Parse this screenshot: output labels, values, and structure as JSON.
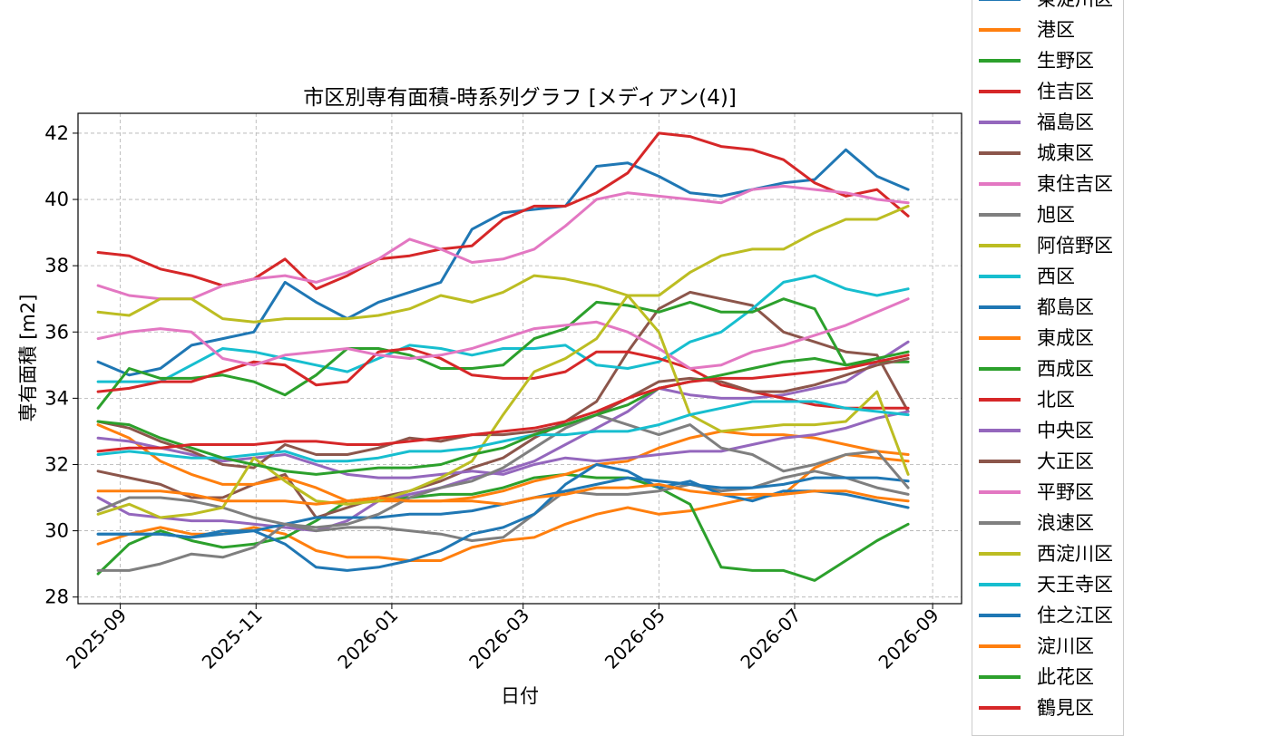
{
  "chart_data": {
    "type": "line",
    "title": "市区別専有面積-時系列グラフ [メディアン(4)]",
    "xlabel": "日付",
    "ylabel": "専有面積 [m2]",
    "ylim": [
      27.8,
      42.6
    ],
    "xlim": [
      "2025-08-13",
      "2026-09-14"
    ],
    "y_ticks": [
      28,
      30,
      32,
      34,
      36,
      38,
      40,
      42
    ],
    "x_ticks": [
      "2025-09-01",
      "2025-11-01",
      "2026-01-01",
      "2026-03-01",
      "2026-05-01",
      "2026-07-01",
      "2026-09-01"
    ],
    "x_tick_labels": [
      "2025-09",
      "2025-11",
      "2026-01",
      "2026-03",
      "2026-05",
      "2026-07",
      "2026-09"
    ],
    "grid": true,
    "legend_position": "right, outside plot",
    "x": [
      "2025-08-22",
      "2025-09-05",
      "2025-09-19",
      "2025-10-03",
      "2025-10-17",
      "2025-10-31",
      "2025-11-14",
      "2025-11-28",
      "2025-12-12",
      "2025-12-26",
      "2026-01-09",
      "2026-01-23",
      "2026-02-06",
      "2026-02-20",
      "2026-03-06",
      "2026-03-20",
      "2026-04-03",
      "2026-04-17",
      "2026-05-01",
      "2026-05-15",
      "2026-05-29",
      "2026-06-12",
      "2026-06-26",
      "2026-07-10",
      "2026-07-24",
      "2026-08-07",
      "2026-08-21"
    ],
    "series": [
      {
        "name": "東淀川区",
        "color": "#1f77b4",
        "values": [
          35.1,
          34.7,
          34.9,
          35.6,
          35.8,
          36.0,
          37.5,
          36.9,
          36.4,
          36.9,
          37.2,
          37.5,
          39.1,
          39.6,
          39.7,
          39.8,
          41.0,
          41.1,
          40.7,
          40.2,
          40.1,
          40.3,
          40.5,
          40.6,
          41.5,
          40.7,
          40.3
        ]
      },
      {
        "name": "港区",
        "color": "#ff7f0e",
        "values": [
          29.6,
          29.9,
          30.1,
          29.9,
          29.9,
          30.1,
          29.9,
          29.4,
          29.2,
          29.2,
          29.1,
          29.1,
          29.5,
          29.7,
          29.8,
          30.2,
          30.5,
          30.7,
          30.5,
          30.6,
          30.8,
          31.0,
          31.1,
          31.9,
          32.3,
          32.2,
          32.1
        ]
      },
      {
        "name": "生野区",
        "color": "#2ca02c",
        "values": [
          28.7,
          29.6,
          30.0,
          29.7,
          29.5,
          29.6,
          29.8,
          30.3,
          30.9,
          31.0,
          31.0,
          31.1,
          31.1,
          31.3,
          31.6,
          31.7,
          31.6,
          31.6,
          31.3,
          30.8,
          28.9,
          28.8,
          28.8,
          28.5,
          29.1,
          29.7,
          30.2
        ]
      },
      {
        "name": "住吉区",
        "color": "#d62728",
        "values": [
          38.4,
          38.3,
          37.9,
          37.7,
          37.4,
          37.6,
          38.2,
          37.3,
          37.7,
          38.2,
          38.3,
          38.5,
          38.6,
          39.4,
          39.8,
          39.8,
          40.2,
          40.8,
          42.0,
          41.9,
          41.6,
          41.5,
          41.2,
          40.5,
          40.1,
          40.3,
          39.5
        ]
      },
      {
        "name": "福島区",
        "color": "#9467bd",
        "values": [
          31.0,
          30.5,
          30.4,
          30.3,
          30.3,
          30.2,
          30.1,
          30.0,
          30.3,
          30.9,
          31.1,
          31.3,
          31.6,
          31.8,
          32.1,
          32.6,
          33.1,
          33.6,
          34.3,
          34.1,
          34.0,
          34.0,
          34.1,
          34.3,
          34.5,
          35.1,
          35.7
        ]
      },
      {
        "name": "城東区",
        "color": "#8c564b",
        "values": [
          31.8,
          31.6,
          31.4,
          31.0,
          31.0,
          31.4,
          31.7,
          30.4,
          30.7,
          31.0,
          31.2,
          31.5,
          31.9,
          32.2,
          32.8,
          33.3,
          33.9,
          35.4,
          36.7,
          37.2,
          37.0,
          36.8,
          36.0,
          35.7,
          35.4,
          35.3,
          33.6
        ]
      },
      {
        "name": "東住吉区",
        "color": "#e377c2",
        "values": [
          37.4,
          37.1,
          37.0,
          37.0,
          37.4,
          37.6,
          37.7,
          37.5,
          37.8,
          38.2,
          38.8,
          38.5,
          38.1,
          38.2,
          38.5,
          39.2,
          40.0,
          40.2,
          40.1,
          40.0,
          39.9,
          40.3,
          40.4,
          40.3,
          40.2,
          40.0,
          39.9
        ]
      },
      {
        "name": "旭区",
        "color": "#7f7f7f",
        "values": [
          28.8,
          28.8,
          29.0,
          29.3,
          29.2,
          29.5,
          30.2,
          30.0,
          30.1,
          30.1,
          30.0,
          29.9,
          29.7,
          29.8,
          30.5,
          31.2,
          31.1,
          31.1,
          31.2,
          31.4,
          31.2,
          31.3,
          31.6,
          31.8,
          31.6,
          31.3,
          31.1
        ]
      },
      {
        "name": "阿倍野区",
        "color": "#bcbd22",
        "values": [
          36.6,
          36.5,
          37.0,
          37.0,
          36.4,
          36.3,
          36.4,
          36.4,
          36.4,
          36.5,
          36.7,
          37.1,
          36.9,
          37.2,
          37.7,
          37.6,
          37.4,
          37.1,
          37.1,
          37.8,
          38.3,
          38.5,
          38.5,
          39.0,
          39.4,
          39.4,
          39.8
        ]
      },
      {
        "name": "西区",
        "color": "#17becf",
        "values": [
          34.5,
          34.5,
          34.5,
          35.0,
          35.5,
          35.4,
          35.2,
          35.0,
          34.8,
          35.2,
          35.6,
          35.5,
          35.3,
          35.5,
          35.5,
          35.6,
          35.0,
          34.9,
          35.1,
          35.7,
          36.0,
          36.7,
          37.5,
          37.7,
          37.3,
          37.1,
          37.3
        ]
      },
      {
        "name": "都島区",
        "color": "#1f77b4",
        "values": [
          29.9,
          29.9,
          29.9,
          29.8,
          29.9,
          30.0,
          30.2,
          30.4,
          30.4,
          30.4,
          30.5,
          30.5,
          30.6,
          30.8,
          31.0,
          31.2,
          31.4,
          31.6,
          31.5,
          31.4,
          31.3,
          31.3,
          31.4,
          31.6,
          31.6,
          31.6,
          31.5
        ]
      },
      {
        "name": "東成区",
        "color": "#ff7f0e",
        "values": [
          33.2,
          32.8,
          32.1,
          31.7,
          31.4,
          31.4,
          31.6,
          31.3,
          30.9,
          30.9,
          30.9,
          30.9,
          31.0,
          31.2,
          31.5,
          31.7,
          32.0,
          32.1,
          32.5,
          32.8,
          33.0,
          32.9,
          32.9,
          32.8,
          32.6,
          32.4,
          32.3
        ]
      },
      {
        "name": "西成区",
        "color": "#2ca02c",
        "values": [
          33.7,
          34.9,
          34.6,
          34.6,
          34.7,
          34.5,
          34.1,
          34.7,
          35.5,
          35.5,
          35.3,
          34.9,
          34.9,
          35.0,
          35.8,
          36.1,
          36.9,
          36.8,
          36.6,
          36.9,
          36.6,
          36.6,
          37.0,
          36.7,
          35.0,
          35.1,
          35.1
        ]
      },
      {
        "name": "北区",
        "color": "#d62728",
        "values": [
          34.2,
          34.3,
          34.5,
          34.5,
          34.8,
          35.1,
          35.0,
          34.4,
          34.5,
          35.4,
          35.5,
          35.2,
          34.7,
          34.6,
          34.6,
          34.8,
          35.4,
          35.4,
          35.2,
          34.9,
          34.4,
          34.2,
          34.0,
          33.8,
          33.7,
          33.7,
          33.7
        ]
      },
      {
        "name": "中央区",
        "color": "#9467bd",
        "values": [
          32.8,
          32.7,
          32.5,
          32.3,
          32.1,
          32.2,
          32.3,
          32.0,
          31.7,
          31.6,
          31.6,
          31.7,
          31.8,
          31.7,
          32.0,
          32.2,
          32.1,
          32.2,
          32.3,
          32.4,
          32.4,
          32.6,
          32.8,
          32.9,
          33.1,
          33.4,
          33.6
        ]
      },
      {
        "name": "大正区",
        "color": "#8c564b",
        "values": [
          33.3,
          33.1,
          32.7,
          32.4,
          32.0,
          31.9,
          32.6,
          32.3,
          32.3,
          32.5,
          32.8,
          32.7,
          32.9,
          32.9,
          33.0,
          33.2,
          33.5,
          34.0,
          34.5,
          34.6,
          34.5,
          34.2,
          34.2,
          34.4,
          34.7,
          35.0,
          35.2
        ]
      },
      {
        "name": "平野区",
        "color": "#e377c2",
        "values": [
          35.8,
          36.0,
          36.1,
          36.0,
          35.2,
          35.0,
          35.3,
          35.4,
          35.5,
          35.3,
          35.2,
          35.3,
          35.5,
          35.8,
          36.1,
          36.2,
          36.3,
          36.0,
          35.5,
          34.9,
          35.0,
          35.4,
          35.6,
          35.9,
          36.2,
          36.6,
          37.0
        ]
      },
      {
        "name": "浪速区",
        "color": "#7f7f7f",
        "values": [
          30.6,
          31.0,
          31.0,
          30.9,
          30.7,
          30.4,
          30.2,
          30.1,
          30.2,
          30.5,
          31.0,
          31.3,
          31.5,
          31.9,
          32.5,
          33.1,
          33.5,
          33.2,
          32.9,
          33.2,
          32.5,
          32.3,
          31.8,
          32.0,
          32.3,
          32.4,
          31.3
        ]
      },
      {
        "name": "西淀川区",
        "color": "#bcbd22",
        "values": [
          30.5,
          30.8,
          30.4,
          30.5,
          30.7,
          32.2,
          31.5,
          30.9,
          30.8,
          30.9,
          31.2,
          31.6,
          32.1,
          33.5,
          34.8,
          35.2,
          35.8,
          37.1,
          36.0,
          33.5,
          33.0,
          33.1,
          33.2,
          33.2,
          33.3,
          34.2,
          31.7
        ]
      },
      {
        "name": "天王寺区",
        "color": "#17becf",
        "values": [
          32.3,
          32.4,
          32.3,
          32.2,
          32.2,
          32.3,
          32.4,
          32.1,
          32.1,
          32.2,
          32.4,
          32.4,
          32.5,
          32.7,
          32.9,
          32.9,
          33.0,
          33.0,
          33.2,
          33.5,
          33.7,
          33.9,
          33.9,
          33.9,
          33.7,
          33.6,
          33.5
        ]
      },
      {
        "name": "住之江区",
        "color": "#1f77b4",
        "values": [
          29.9,
          29.9,
          29.9,
          29.8,
          30.0,
          30.0,
          29.6,
          28.9,
          28.8,
          28.9,
          29.1,
          29.4,
          29.9,
          30.1,
          30.5,
          31.4,
          32.0,
          31.8,
          31.3,
          31.5,
          31.1,
          30.9,
          31.2,
          31.2,
          31.1,
          30.9,
          30.7
        ]
      },
      {
        "name": "淀川区",
        "color": "#ff7f0e",
        "values": [
          31.2,
          31.2,
          31.2,
          31.1,
          30.9,
          30.9,
          30.9,
          30.8,
          30.9,
          31.0,
          30.9,
          30.9,
          30.9,
          30.8,
          31.0,
          31.1,
          31.3,
          31.3,
          31.4,
          31.2,
          31.1,
          31.1,
          31.1,
          31.2,
          31.2,
          31.0,
          30.9
        ]
      },
      {
        "name": "此花区",
        "color": "#2ca02c",
        "values": [
          33.3,
          33.2,
          32.8,
          32.5,
          32.2,
          32.0,
          31.8,
          31.7,
          31.8,
          31.9,
          31.9,
          32.0,
          32.3,
          32.5,
          32.9,
          33.2,
          33.5,
          33.8,
          34.3,
          34.5,
          34.7,
          34.9,
          35.1,
          35.2,
          35.0,
          35.2,
          35.4
        ]
      },
      {
        "name": "鶴見区",
        "color": "#d62728",
        "values": [
          32.4,
          32.5,
          32.5,
          32.6,
          32.6,
          32.6,
          32.7,
          32.7,
          32.6,
          32.6,
          32.7,
          32.8,
          32.9,
          33.0,
          33.1,
          33.3,
          33.6,
          34.0,
          34.3,
          34.5,
          34.6,
          34.6,
          34.7,
          34.8,
          34.9,
          35.1,
          35.3
        ]
      }
    ]
  }
}
